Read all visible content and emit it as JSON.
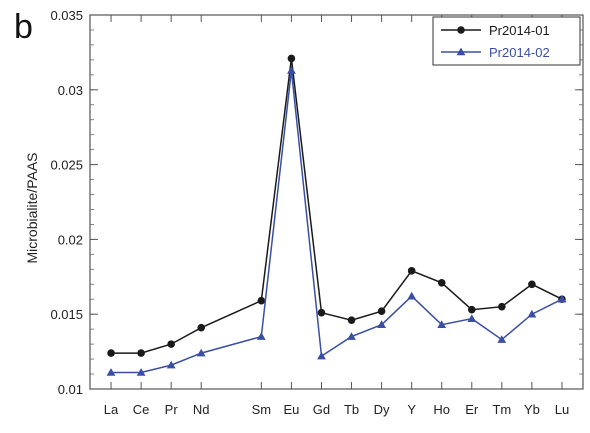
{
  "panel_label": "b",
  "chart_data": {
    "type": "line",
    "categories": [
      "La",
      "Ce",
      "Pr",
      "Nd",
      "Sm",
      "Eu",
      "Gd",
      "Tb",
      "Dy",
      "Y",
      "Ho",
      "Er",
      "Tm",
      "Yb",
      "Lu"
    ],
    "x_positions": [
      1,
      2,
      3,
      4,
      6,
      7,
      8,
      9,
      10,
      11,
      12,
      13,
      14,
      15,
      16
    ],
    "xlim": [
      0.3,
      16.7
    ],
    "ylim": [
      0.01,
      0.035
    ],
    "yticks": [
      0.01,
      0.015,
      0.02,
      0.025,
      0.03,
      0.035
    ],
    "ytick_labels": [
      "0.01",
      "0.015",
      "0.02",
      "0.025",
      "0.03",
      "0.035"
    ],
    "ylabel": "Microbialite/PAAS",
    "xlabel": "",
    "title": "",
    "grid": false,
    "legend_position": "top-right",
    "series": [
      {
        "name": "Pr2014-01",
        "marker": "circle",
        "color": "#1a1a1a",
        "values": [
          0.0124,
          0.0124,
          0.013,
          0.0141,
          0.0159,
          0.0321,
          0.0151,
          0.0146,
          0.0152,
          0.0179,
          0.0171,
          0.0153,
          0.0155,
          0.017,
          0.016
        ]
      },
      {
        "name": "Pr2014-02",
        "marker": "triangle",
        "color": "#3a4fa3",
        "values": [
          0.0111,
          0.0111,
          0.0116,
          0.0124,
          0.0135,
          0.0313,
          0.0122,
          0.0135,
          0.0143,
          0.0162,
          0.0143,
          0.0147,
          0.0133,
          0.015,
          0.016
        ]
      }
    ]
  }
}
